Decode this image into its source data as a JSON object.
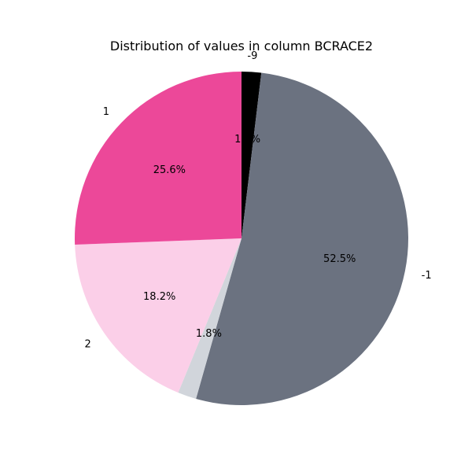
{
  "chart_data": {
    "type": "pie",
    "title": "Distribution of values in column BCRACE2",
    "start_angle_deg": 90,
    "direction": "clockwise",
    "slices": [
      {
        "label": "-9",
        "value": 1.9,
        "pct_text": "1.9%",
        "color": "#000000"
      },
      {
        "label": "-1",
        "value": 52.5,
        "pct_text": "52.5%",
        "color": "#6b7280"
      },
      {
        "label": "",
        "value": 1.8,
        "pct_text": "1.8%",
        "color": "#d1d5db"
      },
      {
        "label": "2",
        "value": 18.2,
        "pct_text": "18.2%",
        "color": "#fbcfe8"
      },
      {
        "label": "1",
        "value": 25.6,
        "pct_text": "25.6%",
        "color": "#ec4899"
      }
    ]
  }
}
